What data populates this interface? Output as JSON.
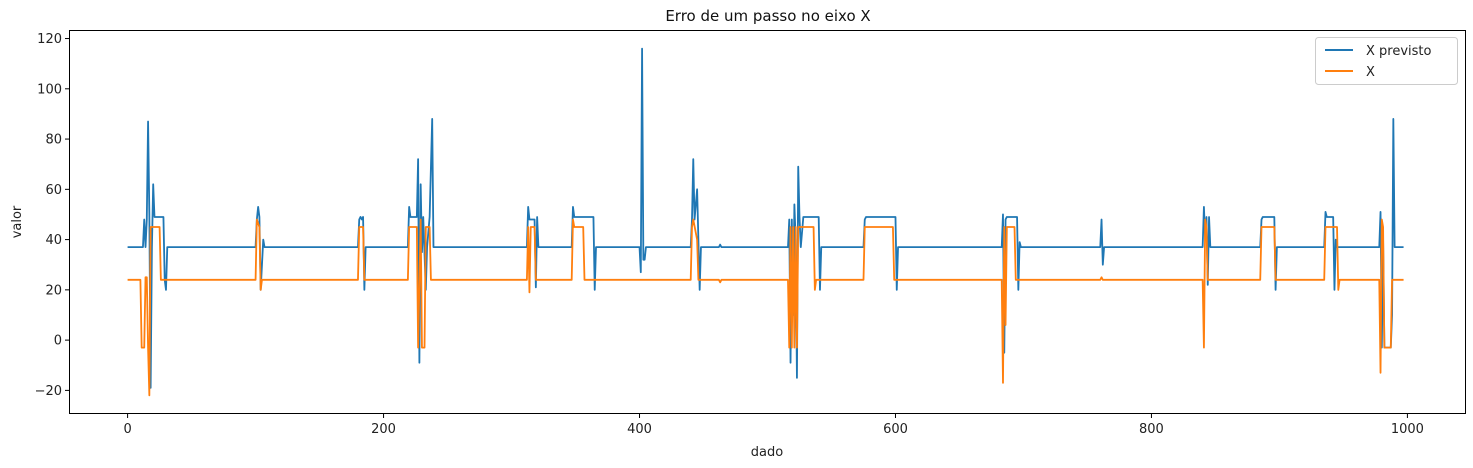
{
  "chart_data": {
    "type": "line",
    "title": "Erro de um passo no eixo X",
    "xlabel": "dado",
    "ylabel": "valor",
    "xlim": [
      -45,
      1045
    ],
    "ylim": [
      -29,
      123
    ],
    "xticks": [
      0,
      200,
      400,
      600,
      800,
      1000
    ],
    "yticks": [
      -20,
      0,
      20,
      40,
      60,
      80,
      100,
      120
    ],
    "legend_position": "top-right",
    "grid": false,
    "series": [
      {
        "name": "X previsto",
        "color": "#1f77b4",
        "points": [
          [
            0,
            37
          ],
          [
            12,
            37
          ],
          [
            13,
            48
          ],
          [
            14,
            37
          ],
          [
            15,
            48
          ],
          [
            16,
            87
          ],
          [
            17,
            50
          ],
          [
            18,
            -19
          ],
          [
            19,
            37
          ],
          [
            20,
            62
          ],
          [
            21,
            49
          ],
          [
            28,
            49
          ],
          [
            29,
            24
          ],
          [
            30,
            20
          ],
          [
            31,
            37
          ],
          [
            32,
            37
          ],
          [
            100,
            37
          ],
          [
            101,
            48
          ],
          [
            102,
            53
          ],
          [
            103,
            49
          ],
          [
            104,
            20
          ],
          [
            105,
            30
          ],
          [
            106,
            40
          ],
          [
            107,
            37
          ],
          [
            180,
            37
          ],
          [
            181,
            48
          ],
          [
            182,
            49
          ],
          [
            183,
            48
          ],
          [
            184,
            49
          ],
          [
            185,
            20
          ],
          [
            186,
            37
          ],
          [
            219,
            37
          ],
          [
            220,
            53
          ],
          [
            221,
            49
          ],
          [
            226,
            49
          ],
          [
            227,
            72
          ],
          [
            228,
            -9
          ],
          [
            229,
            62
          ],
          [
            230,
            35
          ],
          [
            231,
            49
          ],
          [
            233,
            20
          ],
          [
            234,
            37
          ],
          [
            236,
            49
          ],
          [
            238,
            88
          ],
          [
            239,
            37
          ],
          [
            312,
            37
          ],
          [
            313,
            53
          ],
          [
            314,
            48
          ],
          [
            318,
            48
          ],
          [
            319,
            21
          ],
          [
            320,
            49
          ],
          [
            321,
            37
          ],
          [
            347,
            37
          ],
          [
            348,
            53
          ],
          [
            349,
            49
          ],
          [
            350,
            49
          ],
          [
            356,
            49
          ],
          [
            357,
            49
          ],
          [
            364,
            49
          ],
          [
            365,
            20
          ],
          [
            366,
            37
          ],
          [
            400,
            37
          ],
          [
            401,
            27
          ],
          [
            402,
            116
          ],
          [
            403,
            32
          ],
          [
            404,
            32
          ],
          [
            405,
            37
          ],
          [
            440,
            37
          ],
          [
            441,
            48
          ],
          [
            442,
            72
          ],
          [
            443,
            48
          ],
          [
            445,
            60
          ],
          [
            446,
            40
          ],
          [
            447,
            20
          ],
          [
            448,
            37
          ],
          [
            462,
            37
          ],
          [
            463,
            38
          ],
          [
            464,
            37
          ],
          [
            516,
            37
          ],
          [
            517,
            48
          ],
          [
            518,
            -9
          ],
          [
            519,
            48
          ],
          [
            520,
            10
          ],
          [
            521,
            54
          ],
          [
            522,
            40
          ],
          [
            523,
            -15
          ],
          [
            524,
            69
          ],
          [
            525,
            49
          ],
          [
            526,
            37
          ],
          [
            528,
            49
          ],
          [
            540,
            49
          ],
          [
            541,
            20
          ],
          [
            542,
            37
          ],
          [
            575,
            37
          ],
          [
            576,
            48
          ],
          [
            577,
            49
          ],
          [
            600,
            49
          ],
          [
            601,
            20
          ],
          [
            602,
            37
          ],
          [
            683,
            37
          ],
          [
            684,
            50
          ],
          [
            685,
            -5
          ],
          [
            686,
            48
          ],
          [
            687,
            49
          ],
          [
            695,
            49
          ],
          [
            696,
            20
          ],
          [
            697,
            39
          ],
          [
            698,
            37
          ],
          [
            760,
            37
          ],
          [
            761,
            48
          ],
          [
            762,
            30
          ],
          [
            763,
            37
          ],
          [
            840,
            37
          ],
          [
            841,
            53
          ],
          [
            842,
            40
          ],
          [
            843,
            49
          ],
          [
            844,
            22
          ],
          [
            845,
            49
          ],
          [
            846,
            37
          ],
          [
            885,
            37
          ],
          [
            886,
            48
          ],
          [
            887,
            49
          ],
          [
            896,
            49
          ],
          [
            897,
            20
          ],
          [
            898,
            37
          ],
          [
            935,
            37
          ],
          [
            936,
            51
          ],
          [
            937,
            49
          ],
          [
            942,
            49
          ],
          [
            943,
            20
          ],
          [
            944,
            40
          ],
          [
            945,
            37
          ],
          [
            978,
            37
          ],
          [
            979,
            51
          ],
          [
            980,
            -3
          ],
          [
            981,
            40
          ],
          [
            982,
            -3
          ],
          [
            987,
            -3
          ],
          [
            988,
            10
          ],
          [
            989,
            88
          ],
          [
            990,
            37
          ],
          [
            997,
            37
          ]
        ]
      },
      {
        "name": "X",
        "color": "#ff7f0e",
        "points": [
          [
            0,
            24
          ],
          [
            10,
            24
          ],
          [
            11,
            -3
          ],
          [
            13,
            -3
          ],
          [
            14,
            25
          ],
          [
            15,
            25
          ],
          [
            16,
            -3
          ],
          [
            17,
            -22
          ],
          [
            18,
            45
          ],
          [
            19,
            45
          ],
          [
            25,
            45
          ],
          [
            26,
            24
          ],
          [
            27,
            24
          ],
          [
            100,
            24
          ],
          [
            101,
            48
          ],
          [
            103,
            45
          ],
          [
            104,
            20
          ],
          [
            105,
            24
          ],
          [
            180,
            24
          ],
          [
            181,
            45
          ],
          [
            184,
            45
          ],
          [
            185,
            24
          ],
          [
            219,
            24
          ],
          [
            220,
            45
          ],
          [
            221,
            45
          ],
          [
            226,
            45
          ],
          [
            227,
            -3
          ],
          [
            229,
            48
          ],
          [
            230,
            -3
          ],
          [
            232,
            -3
          ],
          [
            233,
            45
          ],
          [
            236,
            45
          ],
          [
            237,
            24
          ],
          [
            312,
            24
          ],
          [
            313,
            45
          ],
          [
            314,
            19
          ],
          [
            315,
            45
          ],
          [
            318,
            45
          ],
          [
            319,
            24
          ],
          [
            347,
            24
          ],
          [
            348,
            48
          ],
          [
            349,
            45
          ],
          [
            356,
            45
          ],
          [
            357,
            24
          ],
          [
            440,
            24
          ],
          [
            441,
            45
          ],
          [
            442,
            48
          ],
          [
            445,
            40
          ],
          [
            446,
            24
          ],
          [
            462,
            24
          ],
          [
            463,
            23
          ],
          [
            464,
            24
          ],
          [
            516,
            24
          ],
          [
            517,
            -3
          ],
          [
            518,
            45
          ],
          [
            519,
            -3
          ],
          [
            520,
            45
          ],
          [
            521,
            -3
          ],
          [
            522,
            45
          ],
          [
            523,
            -3
          ],
          [
            524,
            45
          ],
          [
            525,
            45
          ],
          [
            536,
            45
          ],
          [
            537,
            20
          ],
          [
            538,
            24
          ],
          [
            575,
            24
          ],
          [
            576,
            45
          ],
          [
            598,
            45
          ],
          [
            599,
            24
          ],
          [
            683,
            24
          ],
          [
            684,
            -17
          ],
          [
            685,
            45
          ],
          [
            686,
            6
          ],
          [
            687,
            45
          ],
          [
            693,
            45
          ],
          [
            694,
            24
          ],
          [
            760,
            24
          ],
          [
            761,
            25
          ],
          [
            762,
            24
          ],
          [
            840,
            24
          ],
          [
            841,
            -3
          ],
          [
            842,
            48
          ],
          [
            843,
            45
          ],
          [
            844,
            24
          ],
          [
            885,
            24
          ],
          [
            886,
            45
          ],
          [
            896,
            45
          ],
          [
            897,
            24
          ],
          [
            935,
            24
          ],
          [
            936,
            45
          ],
          [
            945,
            45
          ],
          [
            946,
            20
          ],
          [
            947,
            24
          ],
          [
            978,
            24
          ],
          [
            979,
            -13
          ],
          [
            980,
            48
          ],
          [
            981,
            45
          ],
          [
            982,
            -3
          ],
          [
            987,
            -3
          ],
          [
            988,
            24
          ],
          [
            997,
            24
          ]
        ]
      }
    ]
  }
}
